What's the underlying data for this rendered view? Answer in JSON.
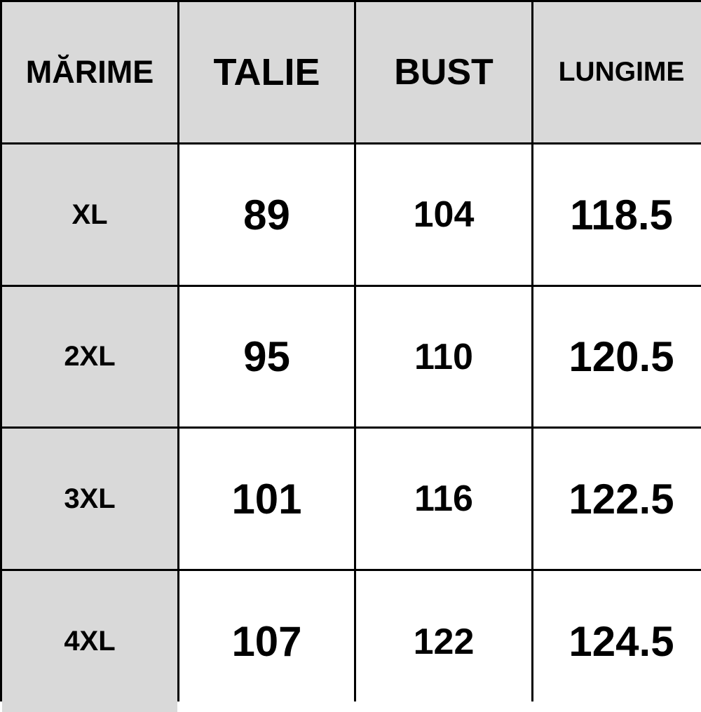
{
  "colors": {
    "header_bg": "#d9d9d9",
    "size_col_bg": "#d9d9d9",
    "cell_bg": "#ffffff",
    "border": "#000000"
  },
  "table": {
    "headers": [
      "MĂRIME",
      "TALIE",
      "BUST",
      "LUNGIME"
    ],
    "rows": [
      [
        "XL",
        "89",
        "104",
        "118.5"
      ],
      [
        "2XL",
        "95",
        "110",
        "120.5"
      ],
      [
        "3XL",
        "101",
        "116",
        "122.5"
      ],
      [
        "4XL",
        "107",
        "122",
        "124.5"
      ]
    ]
  }
}
